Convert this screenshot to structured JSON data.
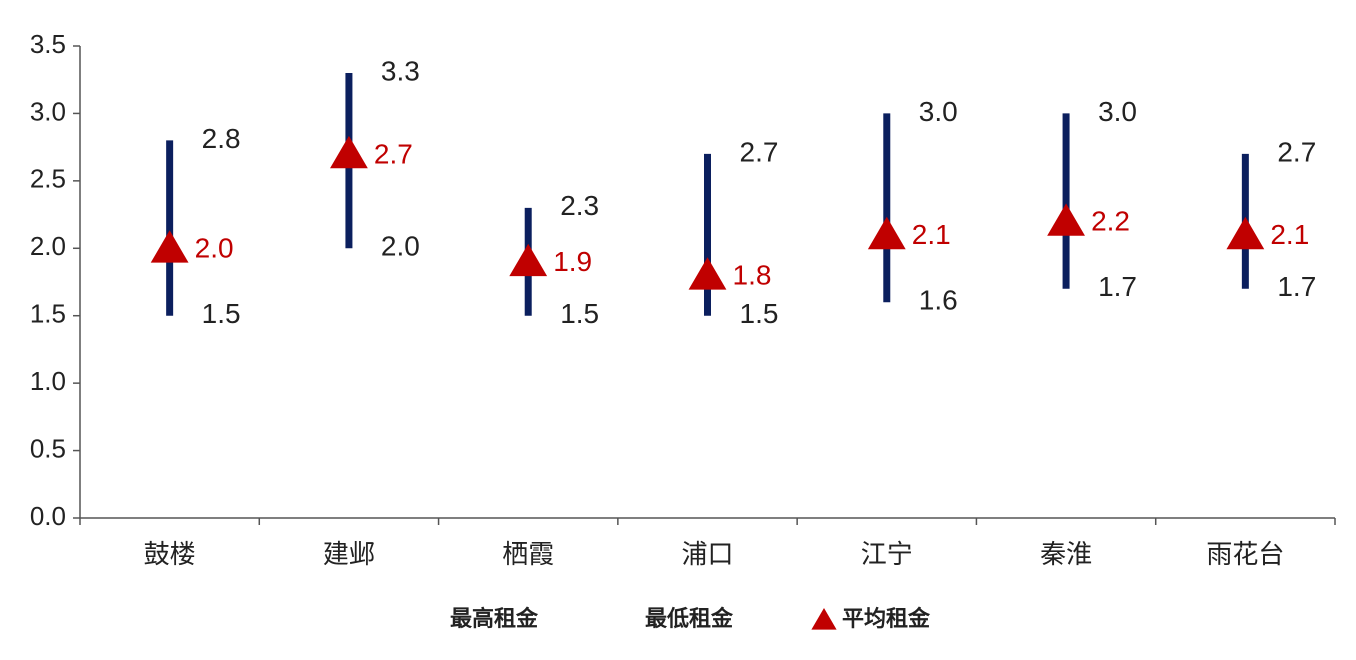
{
  "chart_data": {
    "type": "high-low",
    "categories": [
      "鼓楼",
      "建邺",
      "栖霞",
      "浦口",
      "江宁",
      "秦淮",
      "雨花台"
    ],
    "series": [
      {
        "name": "最高租金",
        "color": "#0b1f5e",
        "values": [
          2.8,
          3.3,
          2.3,
          2.7,
          3.0,
          3.0,
          2.7
        ],
        "value_labels": [
          "2.8",
          "3.3",
          "2.3",
          "2.7",
          "3.0",
          "3.0",
          "2.7"
        ]
      },
      {
        "name": "最低租金",
        "color": "#0b1f5e",
        "values": [
          1.5,
          2.0,
          1.5,
          1.5,
          1.6,
          1.7,
          1.7
        ],
        "value_labels": [
          "1.5",
          "2.0",
          "1.5",
          "1.5",
          "1.6",
          "1.7",
          "1.7"
        ]
      },
      {
        "name": "平均租金",
        "color": "#c00000",
        "values": [
          2.0,
          2.7,
          1.9,
          1.8,
          2.1,
          2.2,
          2.1
        ],
        "value_labels": [
          "2.0",
          "2.7",
          "1.9",
          "1.8",
          "2.1",
          "2.2",
          "2.1"
        ]
      }
    ],
    "ylim": [
      0,
      3.5
    ],
    "yticks": [
      {
        "value": 0,
        "label": "0.0"
      },
      0.5,
      {
        "value": 1,
        "label": "1.0"
      },
      1.5,
      {
        "value": 2,
        "label": "2.0"
      },
      2.5,
      {
        "value": 3,
        "label": "3.0"
      },
      3.5
    ],
    "grid": false
  }
}
